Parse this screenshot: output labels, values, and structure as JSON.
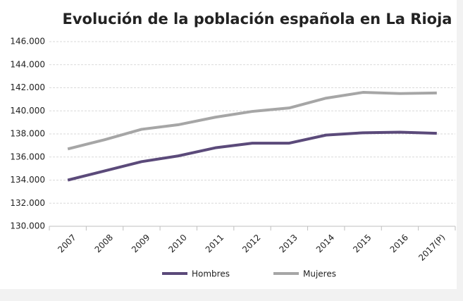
{
  "chart_data": {
    "type": "line",
    "title": "Evolución de la población española en La Rioja",
    "categories": [
      "2007",
      "2008",
      "2009",
      "2010",
      "2011",
      "2012",
      "2013",
      "2014",
      "2015",
      "2016",
      "2017(P)"
    ],
    "series": [
      {
        "name": "Hombres",
        "color": "#5b4a7a",
        "values": [
          134000,
          134800,
          135600,
          136100,
          136800,
          137200,
          137200,
          137900,
          138100,
          138150,
          138050
        ]
      },
      {
        "name": "Mujeres",
        "color": "#a6a6a6",
        "values": [
          136700,
          137500,
          138400,
          138800,
          139450,
          139950,
          140250,
          141100,
          141600,
          141500,
          141550
        ]
      }
    ],
    "ylim": [
      130000,
      146000
    ],
    "yticks": [
      {
        "value": 130000,
        "label": "130.000"
      },
      {
        "value": 132000,
        "label": "132.000"
      },
      {
        "value": 134000,
        "label": "134.000"
      },
      {
        "value": 136000,
        "label": "136.000"
      },
      {
        "value": 138000,
        "label": "138.000"
      },
      {
        "value": 140000,
        "label": "140.000"
      },
      {
        "value": 142000,
        "label": "142.000"
      },
      {
        "value": 144000,
        "label": "144.000"
      },
      {
        "value": 146000,
        "label": "146.000"
      }
    ],
    "grid": true
  }
}
